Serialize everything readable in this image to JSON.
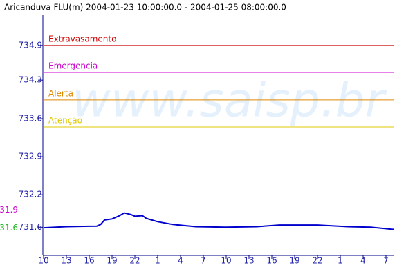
{
  "chart_data": {
    "type": "line",
    "title": "Aricanduva FLU(m) 2004-01-23 10:00:00.0 - 2004-01-25 08:00:00.0",
    "watermark": "www.saisp.br",
    "x": [
      0,
      3,
      7,
      7.5,
      8,
      9,
      10,
      10.6,
      11.5,
      12,
      13,
      13.5,
      14,
      15,
      17,
      20,
      24,
      28,
      31,
      36,
      40,
      43,
      46
    ],
    "series": [
      {
        "name": "Aricanduva FLU(m)",
        "color": "#0000cc",
        "values": [
          731.59,
          731.61,
          731.62,
          731.65,
          731.73,
          731.75,
          731.81,
          731.86,
          731.83,
          731.8,
          731.81,
          731.76,
          731.74,
          731.7,
          731.65,
          731.61,
          731.6,
          731.61,
          731.64,
          731.64,
          731.61,
          731.6,
          731.56
        ]
      }
    ],
    "thresholds": [
      {
        "name": "Extravasamento",
        "value": 734.9,
        "color": "#cc0000"
      },
      {
        "name": "Emergencia",
        "value": 734.41,
        "color": "#cc00cc"
      },
      {
        "name": "Alerta",
        "value": 733.91,
        "color": "#dd8800"
      },
      {
        "name": "Atenção",
        "value": 733.42,
        "color": "#e0c800"
      }
    ],
    "markers": [
      {
        "value": 731.86,
        "label": "31.9",
        "color": "#cc00cc"
      },
      {
        "value": 731.6,
        "label": "31.6",
        "color": "#22bb22"
      }
    ],
    "xlim": [
      0,
      46
    ],
    "xticks": [
      {
        "value": 0,
        "label": "10"
      },
      {
        "value": 3,
        "label": "13"
      },
      {
        "value": 6,
        "label": "16"
      },
      {
        "value": 9,
        "label": "19"
      },
      {
        "value": 12,
        "label": "22"
      },
      {
        "value": 15,
        "label": "1"
      },
      {
        "value": 18,
        "label": "4"
      },
      {
        "value": 21,
        "label": "7"
      },
      {
        "value": 24,
        "label": "10"
      },
      {
        "value": 27,
        "label": "13"
      },
      {
        "value": 30,
        "label": "16"
      },
      {
        "value": 33,
        "label": "19"
      },
      {
        "value": 36,
        "label": "22"
      },
      {
        "value": 39,
        "label": "1"
      },
      {
        "value": 42,
        "label": "4"
      },
      {
        "value": 45,
        "label": "7"
      }
    ],
    "ylim": [
      731.09,
      735.45
    ],
    "yticks": [
      734.9,
      {
        "value": 734.27,
        "label": "734.3"
      },
      {
        "value": 733.57,
        "label": "733.6"
      },
      {
        "value": 732.88,
        "label": "732.9"
      },
      {
        "value": 732.19,
        "label": "732.2"
      },
      731.6
    ]
  }
}
